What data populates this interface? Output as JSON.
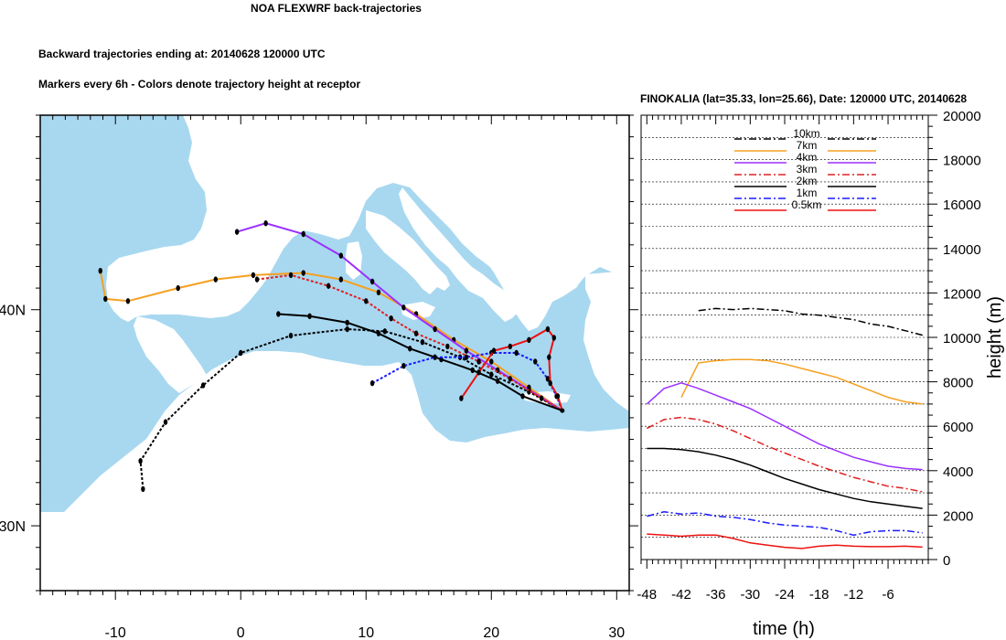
{
  "header": {
    "title": "NOA FLEXWRF back-trajectories",
    "subtitle_1": "Backward trajectories ending at: 20140628  120000 UTC",
    "subtitle_2": "Markers every 6h - Colors denote trajectory height at receptor"
  },
  "map": {
    "lon_range": [
      -16,
      31
    ],
    "lat_range": [
      27,
      49
    ],
    "x_ticks": [
      "-10",
      "0",
      "10",
      "20",
      "30"
    ],
    "y_ticks": [
      "40N",
      "30N"
    ],
    "sea_color": "#a8d8f0",
    "land_color": "#ffffff",
    "receptor": {
      "name": "FINOKALIA",
      "lat": 35.33,
      "lon": 25.66
    }
  },
  "chart_data": {
    "type": "line",
    "title": "FINOKALIA (lat=35.33,  lon=25.66), Date: 120000 UTC, 20140628",
    "xlabel": "time (h)",
    "ylabel": "height (m)",
    "xlim": [
      -49,
      1
    ],
    "ylim": [
      0,
      20000
    ],
    "x_ticks": [
      "-48",
      "-42",
      "-36",
      "-30",
      "-24",
      "-18",
      "-12",
      "-6"
    ],
    "y_ticks": [
      "0",
      "2000",
      "4000",
      "6000",
      "8000",
      "10000",
      "12000",
      "14000",
      "16000",
      "18000",
      "20000"
    ],
    "x": [
      -48,
      -45,
      -42,
      -39,
      -36,
      -33,
      -30,
      -27,
      -24,
      -21,
      -18,
      -15,
      -12,
      -9,
      -6,
      -3,
      0
    ],
    "series": [
      {
        "name": "10km",
        "color": "#000000",
        "dash": "8,3,2,3",
        "values": [
          null,
          null,
          null,
          11200,
          11300,
          11250,
          11300,
          11250,
          11200,
          11050,
          11000,
          10900,
          10800,
          10600,
          10500,
          10300,
          10100
        ]
      },
      {
        "name": "7km",
        "color": "#f5a020",
        "dash": "",
        "values": [
          null,
          null,
          7300,
          8850,
          8950,
          9000,
          9000,
          8950,
          8800,
          8600,
          8400,
          8200,
          7900,
          7600,
          7300,
          7100,
          7000
        ]
      },
      {
        "name": "4km",
        "color": "#9b30ff",
        "dash": "",
        "values": [
          7000,
          7700,
          7950,
          7700,
          7400,
          7100,
          6800,
          6400,
          6000,
          5600,
          5200,
          4900,
          4600,
          4400,
          4200,
          4100,
          4050
        ]
      },
      {
        "name": "3km",
        "color": "#e02020",
        "dash": "8,3,2,3",
        "values": [
          5900,
          6300,
          6400,
          6300,
          6100,
          5800,
          5450,
          5100,
          4800,
          4500,
          4200,
          3950,
          3700,
          3500,
          3300,
          3200,
          3050
        ]
      },
      {
        "name": "2km",
        "color": "#000000",
        "dash": "",
        "values": [
          5000,
          5000,
          4950,
          4850,
          4700,
          4500,
          4250,
          3950,
          3650,
          3400,
          3150,
          2950,
          2750,
          2600,
          2500,
          2400,
          2300
        ]
      },
      {
        "name": "1km",
        "color": "#1a1aff",
        "dash": "8,3,2,3",
        "values": [
          1950,
          2150,
          2050,
          2100,
          1950,
          1900,
          1800,
          1650,
          1550,
          1500,
          1450,
          1300,
          1100,
          1250,
          1300,
          1300,
          1200
        ]
      },
      {
        "name": "0.5km",
        "color": "#ee1111",
        "dash": "",
        "values": [
          1150,
          1100,
          1050,
          1100,
          1100,
          950,
          750,
          650,
          550,
          500,
          600,
          650,
          600,
          580,
          580,
          600,
          560
        ]
      }
    ]
  },
  "trajectories": [
    {
      "name": "10km",
      "color": "#000000",
      "dash": "3,2",
      "points": [
        [
          -7.8,
          31.7
        ],
        [
          -8,
          33
        ],
        [
          -6,
          34.8
        ],
        [
          -3,
          36.5
        ],
        [
          0,
          38
        ],
        [
          4,
          38.8
        ],
        [
          8.5,
          39.1
        ],
        [
          11.5,
          39
        ],
        [
          14.5,
          38.5
        ],
        [
          17.5,
          37.8
        ],
        [
          20,
          37
        ],
        [
          23,
          36.2
        ],
        [
          25.66,
          35.33
        ]
      ]
    },
    {
      "name": "7km",
      "color": "#f5a020",
      "dash": "",
      "points": [
        [
          -11.2,
          41.8
        ],
        [
          -10.8,
          40.5
        ],
        [
          -9,
          40.4
        ],
        [
          -5,
          41
        ],
        [
          -2,
          41.4
        ],
        [
          1,
          41.6
        ],
        [
          5,
          41.7
        ],
        [
          8,
          41.4
        ],
        [
          11,
          40.8
        ],
        [
          14,
          39.8
        ],
        [
          17,
          38.6
        ],
        [
          20,
          37.6
        ],
        [
          23,
          36.4
        ],
        [
          25.66,
          35.33
        ]
      ]
    },
    {
      "name": "4km",
      "color": "#9b30ff",
      "dash": "",
      "points": [
        [
          -0.3,
          43.6
        ],
        [
          2,
          44
        ],
        [
          5,
          43.5
        ],
        [
          8,
          42.5
        ],
        [
          10.5,
          41.3
        ],
        [
          13,
          40.1
        ],
        [
          15.5,
          39.1
        ],
        [
          18,
          38.1
        ],
        [
          20.5,
          37.2
        ],
        [
          23,
          36.3
        ],
        [
          25.66,
          35.33
        ]
      ]
    },
    {
      "name": "3km",
      "color": "#e02020",
      "dash": "3,2",
      "points": [
        [
          1.3,
          41.4
        ],
        [
          4,
          41.6
        ],
        [
          7,
          41.1
        ],
        [
          10,
          40.4
        ],
        [
          12,
          39.6
        ],
        [
          14,
          38.9
        ],
        [
          16.5,
          38.3
        ],
        [
          19,
          37.6
        ],
        [
          21.5,
          36.8
        ],
        [
          24,
          35.9
        ],
        [
          25.66,
          35.33
        ]
      ]
    },
    {
      "name": "2km",
      "color": "#000000",
      "dash": "",
      "points": [
        [
          3,
          39.8
        ],
        [
          5.5,
          39.7
        ],
        [
          8.5,
          39.4
        ],
        [
          11,
          38.9
        ],
        [
          13.5,
          38.2
        ],
        [
          16,
          37.7
        ],
        [
          18.5,
          37.2
        ],
        [
          20.5,
          36.7
        ],
        [
          22.5,
          36
        ],
        [
          25.66,
          35.33
        ]
      ]
    },
    {
      "name": "1km",
      "color": "#1a1aff",
      "dash": "3,2",
      "points": [
        [
          10.5,
          36.6
        ],
        [
          13,
          37.4
        ],
        [
          15.5,
          37.8
        ],
        [
          18,
          37.8
        ],
        [
          20,
          38
        ],
        [
          22,
          38
        ],
        [
          23.5,
          37.6
        ],
        [
          24.5,
          36.8
        ],
        [
          25.2,
          36
        ],
        [
          25.66,
          35.33
        ]
      ]
    },
    {
      "name": "0.5km",
      "color": "#ee1111",
      "dash": "",
      "points": [
        [
          17.6,
          35.9
        ],
        [
          19,
          37.1
        ],
        [
          20.2,
          38.1
        ],
        [
          21.5,
          38.3
        ],
        [
          23,
          38.6
        ],
        [
          24.5,
          39.1
        ],
        [
          25,
          38.7
        ],
        [
          24.6,
          37.8
        ],
        [
          24.7,
          36.6
        ],
        [
          25.3,
          36
        ],
        [
          25.66,
          35.33
        ]
      ]
    }
  ]
}
